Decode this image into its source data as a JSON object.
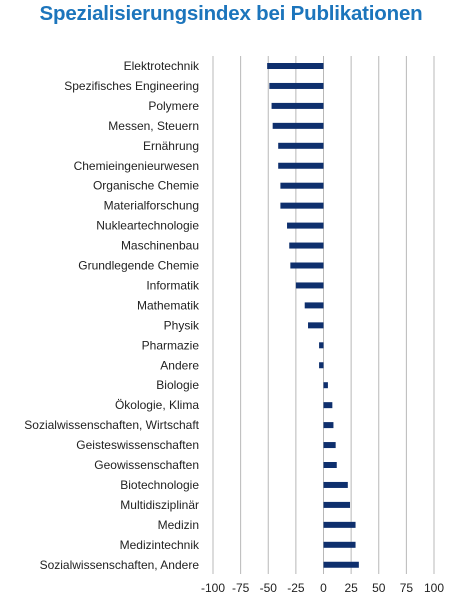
{
  "chart_data": {
    "type": "bar",
    "orientation": "horizontal",
    "title": "Spezialisierungsindex bei Publikationen",
    "categories": [
      "Elektrotechnik",
      "Spezifisches Engineering",
      "Polymere",
      "Messen, Steuern",
      "Ernährung",
      "Chemieingenieurwesen",
      "Organische Chemie",
      "Materialforschung",
      "Nukleartechnologie",
      "Maschinenbau",
      "Grundlegende Chemie",
      "Informatik",
      "Mathematik",
      "Physik",
      "Pharmazie",
      "Andere",
      "Biologie",
      "Ökologie, Klima",
      "Sozialwissenschaften, Wirtschaft",
      "Geisteswissenschaften",
      "Geowissenschaften",
      "Biotechnologie",
      "Multidisziplinär",
      "Medizin",
      "Medizintechnik",
      "Sozialwissenschaften, Andere"
    ],
    "values": [
      -51,
      -49,
      -47,
      -46,
      -41,
      -41,
      -39,
      -39,
      -33,
      -31,
      -30,
      -25,
      -17,
      -14,
      -4,
      -4,
      4,
      8,
      9,
      11,
      12,
      22,
      24,
      29,
      29,
      32
    ],
    "xlim": [
      -100,
      100
    ],
    "xticks": [
      -100,
      -75,
      -50,
      -25,
      0,
      25,
      50,
      75,
      100
    ],
    "xtick_labels": [
      "-100",
      "-75",
      "-50",
      "-25",
      "0",
      "25",
      "50",
      "75",
      "100"
    ],
    "grid": "vertical",
    "bar_color": "#0e2f6d",
    "grid_color": "#b8b8b8"
  }
}
